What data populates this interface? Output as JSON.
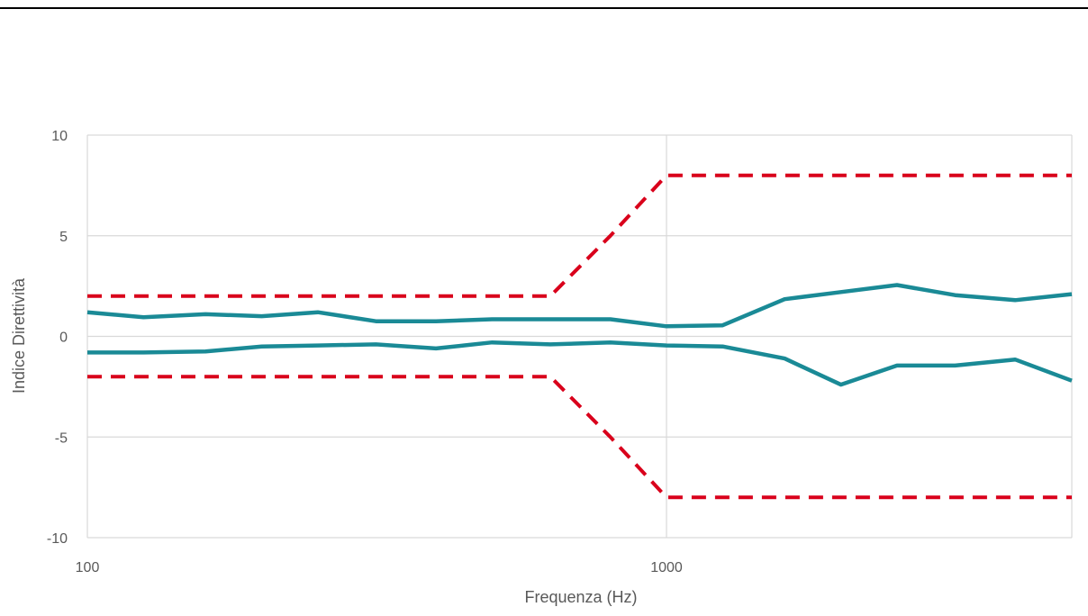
{
  "chart_data": {
    "type": "line",
    "title": "",
    "xlabel": "Frequenza (Hz)",
    "ylabel": "Indice Direttività",
    "x_scale": "log",
    "xlim": [
      100,
      5000
    ],
    "ylim": [
      -10,
      10
    ],
    "y_ticks": [
      10,
      5,
      0,
      -5,
      -10
    ],
    "x_ticks": [
      100,
      1000
    ],
    "grid": true,
    "legend": "none",
    "colors": {
      "measured": "#1a8a96",
      "limit": "#d9001b",
      "grid": "#d9d9d9",
      "text": "#595959"
    },
    "x": [
      100,
      125,
      160,
      200,
      250,
      315,
      400,
      500,
      630,
      800,
      1000,
      1250,
      1600,
      2000,
      2500,
      3150,
      4000,
      5000
    ],
    "series": [
      {
        "style": "solid",
        "values": [
          1.2,
          0.95,
          1.1,
          1.0,
          1.2,
          0.75,
          0.75,
          0.85,
          0.85,
          0.85,
          0.5,
          0.55,
          1.85,
          2.2,
          2.55,
          2.05,
          1.8,
          2.1
        ]
      },
      {
        "style": "solid",
        "values": [
          -0.8,
          -0.8,
          -0.75,
          -0.5,
          -0.45,
          -0.4,
          -0.6,
          -0.3,
          -0.4,
          -0.3,
          -0.45,
          -0.5,
          -1.1,
          -2.4,
          -1.45,
          -1.45,
          -1.15,
          -2.2
        ]
      },
      {
        "style": "dashed",
        "values": [
          2,
          2,
          2,
          2,
          2,
          2,
          2,
          2,
          2,
          5,
          8,
          8,
          8,
          8,
          8,
          8,
          8,
          8
        ]
      },
      {
        "style": "dashed",
        "values": [
          -2,
          -2,
          -2,
          -2,
          -2,
          -2,
          -2,
          -2,
          -2,
          -5,
          -8,
          -8,
          -8,
          -8,
          -8,
          -8,
          -8,
          -8
        ]
      }
    ]
  }
}
